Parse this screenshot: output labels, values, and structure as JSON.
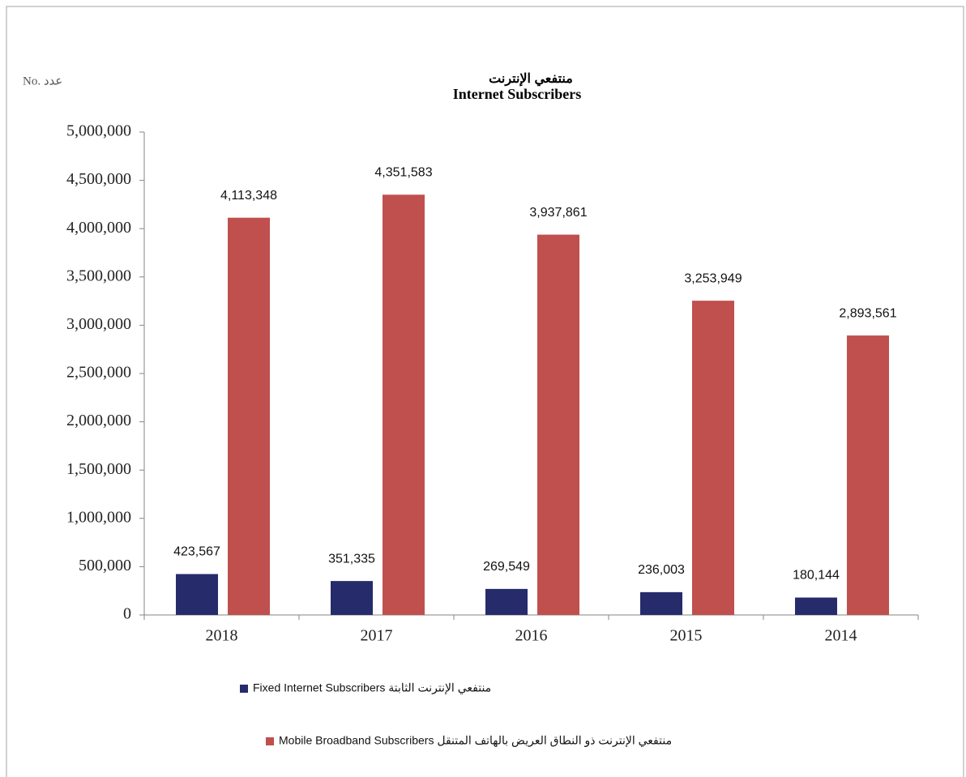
{
  "chart_data": {
    "type": "bar",
    "title": "منتفعي الإنترنت",
    "subtitle": "Internet Subscribers",
    "unit_label": "No. عدد",
    "categories": [
      "2018",
      "2017",
      "2016",
      "2015",
      "2014"
    ],
    "series": [
      {
        "name": "Fixed Internet Subscribers منتفعي الإنترنت الثابتة",
        "color": "#262b6b",
        "values": [
          423567,
          351335,
          269549,
          236003,
          180144
        ],
        "value_labels": [
          "423,567",
          "351,335",
          "269,549",
          "236,003",
          "180,144"
        ]
      },
      {
        "name": "Mobile Broadband Subscribers منتفعي الإنترنت ذو النطاق العريض بالهاتف المتنقل",
        "color": "#c0504d",
        "values": [
          4113348,
          4351583,
          3937861,
          3253949,
          2893561
        ],
        "value_labels": [
          "4,113,348",
          "4,351,583",
          "3,937,861",
          "3,253,949",
          "2,893,561"
        ]
      }
    ],
    "ylim": [
      0,
      5000000
    ],
    "yticks": [
      0,
      {
        "value": 500000,
        "label": "500,000"
      },
      {
        "value": 1000000,
        "label": "1,000,000"
      },
      {
        "value": 1500000,
        "label": "1,500,000"
      },
      {
        "value": 2000000,
        "label": "2,000,000"
      },
      {
        "value": 2500000,
        "label": "2,500,000"
      },
      {
        "value": 3000000,
        "label": "3,000,000"
      },
      {
        "value": 3500000,
        "label": "3,500,000"
      },
      {
        "value": 4000000,
        "label": "4,000,000"
      },
      {
        "value": 4500000,
        "label": "4,500,000"
      },
      {
        "value": 5000000,
        "label": "5,000,000"
      }
    ],
    "grid": false
  }
}
